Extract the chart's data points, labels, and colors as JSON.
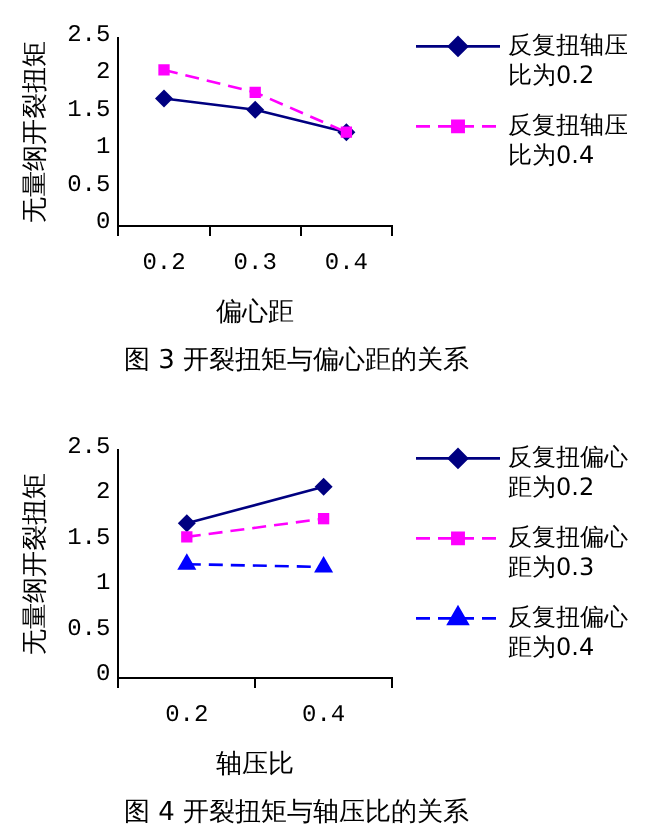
{
  "chart_data": [
    {
      "type": "line",
      "categories": [
        "0.2",
        "0.3",
        "0.4"
      ],
      "xlabel": "偏心距",
      "ylabel": "无量纲开裂扭矩",
      "ylim": [
        0,
        2.5
      ],
      "yticks": [
        0,
        0.5,
        1,
        1.5,
        2,
        2.5
      ],
      "grid": false,
      "legend": "right",
      "annotations": [
        "图 3  开裂扭矩与偏心距的关系"
      ],
      "series": [
        {
          "name": "反复扭轴压比为0.2",
          "color": "#000080",
          "values": [
            1.7,
            1.55,
            1.25
          ],
          "marker": "diamond",
          "line_style": "solid"
        },
        {
          "name": "反复扭轴压比为0.4",
          "color": "#ff00ff",
          "values": [
            2.08,
            1.78,
            1.25
          ],
          "marker": "square",
          "line_style": "dashed"
        }
      ]
    },
    {
      "type": "line",
      "categories": [
        "0.2",
        "0.4"
      ],
      "xlabel": "轴压比",
      "ylabel": "无量纲开裂扭矩",
      "ylim": [
        0,
        2.5
      ],
      "yticks": [
        0,
        0.5,
        1,
        1.5,
        2,
        2.5
      ],
      "grid": false,
      "legend": "right",
      "annotations": [
        "图 4  开裂扭矩与轴压比的关系"
      ],
      "series": [
        {
          "name": "反复扭偏心距为0.2",
          "color": "#000080",
          "values": [
            1.7,
            2.1
          ],
          "marker": "diamond",
          "line_style": "solid"
        },
        {
          "name": "反复扭偏心距为0.3",
          "color": "#ff00ff",
          "values": [
            1.55,
            1.75
          ],
          "marker": "square",
          "line_style": "dashed"
        },
        {
          "name": "反复扭偏心距为0.4",
          "color": "#0000ff",
          "values": [
            1.25,
            1.22
          ],
          "marker": "triangle",
          "line_style": "dashed"
        }
      ]
    }
  ]
}
